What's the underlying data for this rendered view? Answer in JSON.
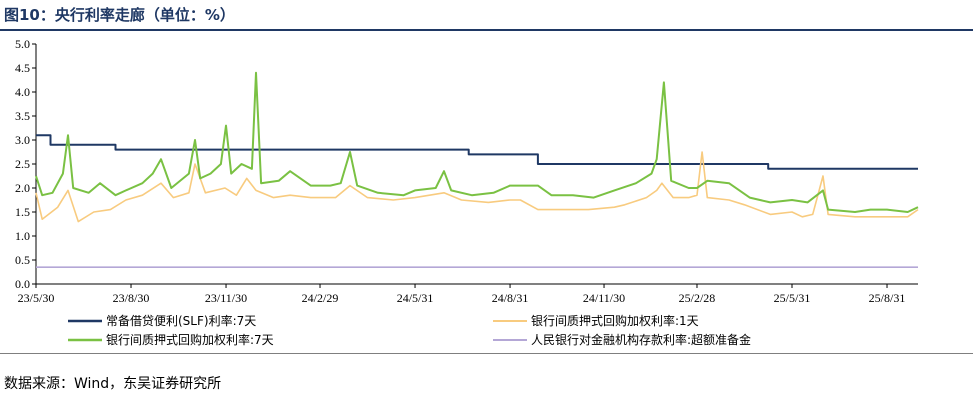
{
  "figure": {
    "title": "图10：央行利率走廊（单位：%）",
    "source": "数据来源：Wind，东吴证券研究所"
  },
  "chart_data": {
    "type": "line",
    "title": "图10：央行利率走廊（单位：%）",
    "xlabel": "",
    "ylabel": "",
    "ylim": [
      0,
      5
    ],
    "yticks": [
      "0.0",
      "0.5",
      "1.0",
      "1.5",
      "2.0",
      "2.5",
      "3.0",
      "3.5",
      "4.0",
      "4.5",
      "5.0"
    ],
    "x_tick_labels": [
      "23/5/30",
      "23/8/30",
      "23/11/30",
      "24/2/29",
      "24/5/31",
      "24/8/31",
      "24/11/30",
      "25/2/28",
      "25/5/31",
      "25/8/31"
    ],
    "xlim": [
      "2023-05-30",
      "2025-09-30"
    ],
    "grid": false,
    "legend_position": "bottom",
    "series": [
      {
        "name": "常备借贷便利(SLF)利率:7天",
        "color": "#1f3864",
        "style": "step",
        "points": [
          [
            "2023-05-30",
            3.1
          ],
          [
            "2023-06-13",
            3.1
          ],
          [
            "2023-06-13",
            2.9
          ],
          [
            "2023-08-15",
            2.9
          ],
          [
            "2023-08-15",
            2.8
          ],
          [
            "2024-07-22",
            2.8
          ],
          [
            "2024-07-22",
            2.7
          ],
          [
            "2024-09-27",
            2.7
          ],
          [
            "2024-09-27",
            2.5
          ],
          [
            "2025-05-08",
            2.5
          ],
          [
            "2025-05-08",
            2.4
          ],
          [
            "2025-09-30",
            2.4
          ]
        ]
      },
      {
        "name": "银行间质押式回购加权利率:1天",
        "color": "#f8cb7f",
        "style": "line",
        "points": [
          [
            "2023-05-30",
            1.9
          ],
          [
            "2023-06-05",
            1.35
          ],
          [
            "2023-06-20",
            1.6
          ],
          [
            "2023-06-30",
            1.95
          ],
          [
            "2023-07-10",
            1.3
          ],
          [
            "2023-07-25",
            1.5
          ],
          [
            "2023-08-10",
            1.55
          ],
          [
            "2023-08-25",
            1.75
          ],
          [
            "2023-09-10",
            1.85
          ],
          [
            "2023-09-28",
            2.1
          ],
          [
            "2023-10-10",
            1.8
          ],
          [
            "2023-10-25",
            1.9
          ],
          [
            "2023-10-31",
            2.5
          ],
          [
            "2023-11-10",
            1.9
          ],
          [
            "2023-11-29",
            2.0
          ],
          [
            "2023-12-10",
            1.85
          ],
          [
            "2023-12-20",
            2.2
          ],
          [
            "2023-12-29",
            1.95
          ],
          [
            "2024-01-15",
            1.8
          ],
          [
            "2024-01-31",
            1.85
          ],
          [
            "2024-02-20",
            1.8
          ],
          [
            "2024-03-15",
            1.8
          ],
          [
            "2024-03-29",
            2.05
          ],
          [
            "2024-04-15",
            1.8
          ],
          [
            "2024-05-10",
            1.75
          ],
          [
            "2024-05-31",
            1.8
          ],
          [
            "2024-06-28",
            1.9
          ],
          [
            "2024-07-15",
            1.75
          ],
          [
            "2024-08-10",
            1.7
          ],
          [
            "2024-08-31",
            1.75
          ],
          [
            "2024-09-10",
            1.75
          ],
          [
            "2024-09-27",
            1.55
          ],
          [
            "2024-10-15",
            1.55
          ],
          [
            "2024-11-15",
            1.55
          ],
          [
            "2024-12-10",
            1.6
          ],
          [
            "2024-12-20",
            1.65
          ],
          [
            "2025-01-10",
            1.8
          ],
          [
            "2025-01-20",
            1.95
          ],
          [
            "2025-01-25",
            2.1
          ],
          [
            "2025-02-05",
            1.8
          ],
          [
            "2025-02-20",
            1.8
          ],
          [
            "2025-02-28",
            1.85
          ],
          [
            "2025-03-05",
            2.75
          ],
          [
            "2025-03-10",
            1.8
          ],
          [
            "2025-03-31",
            1.75
          ],
          [
            "2025-04-15",
            1.65
          ],
          [
            "2025-05-10",
            1.45
          ],
          [
            "2025-05-31",
            1.5
          ],
          [
            "2025-06-10",
            1.4
          ],
          [
            "2025-06-20",
            1.45
          ],
          [
            "2025-06-30",
            2.25
          ],
          [
            "2025-07-05",
            1.45
          ],
          [
            "2025-07-31",
            1.4
          ],
          [
            "2025-08-31",
            1.4
          ],
          [
            "2025-09-20",
            1.4
          ],
          [
            "2025-09-30",
            1.55
          ]
        ]
      },
      {
        "name": "银行间质押式回购加权利率:7天",
        "color": "#7ac143",
        "style": "line",
        "points": [
          [
            "2023-05-30",
            2.25
          ],
          [
            "2023-06-05",
            1.85
          ],
          [
            "2023-06-15",
            1.9
          ],
          [
            "2023-06-25",
            2.3
          ],
          [
            "2023-06-30",
            3.1
          ],
          [
            "2023-07-05",
            2.0
          ],
          [
            "2023-07-20",
            1.9
          ],
          [
            "2023-07-31",
            2.1
          ],
          [
            "2023-08-15",
            1.85
          ],
          [
            "2023-08-25",
            1.95
          ],
          [
            "2023-09-10",
            2.1
          ],
          [
            "2023-09-20",
            2.3
          ],
          [
            "2023-09-28",
            2.6
          ],
          [
            "2023-10-08",
            2.0
          ],
          [
            "2023-10-25",
            2.3
          ],
          [
            "2023-10-31",
            3.0
          ],
          [
            "2023-11-05",
            2.2
          ],
          [
            "2023-11-15",
            2.3
          ],
          [
            "2023-11-25",
            2.5
          ],
          [
            "2023-11-30",
            3.3
          ],
          [
            "2023-12-05",
            2.3
          ],
          [
            "2023-12-15",
            2.5
          ],
          [
            "2023-12-25",
            2.4
          ],
          [
            "2023-12-29",
            4.4
          ],
          [
            "2024-01-03",
            2.1
          ],
          [
            "2024-01-20",
            2.15
          ],
          [
            "2024-01-31",
            2.35
          ],
          [
            "2024-02-20",
            2.05
          ],
          [
            "2024-03-10",
            2.05
          ],
          [
            "2024-03-20",
            2.1
          ],
          [
            "2024-03-29",
            2.75
          ],
          [
            "2024-04-05",
            2.05
          ],
          [
            "2024-04-25",
            1.9
          ],
          [
            "2024-05-20",
            1.85
          ],
          [
            "2024-05-31",
            1.95
          ],
          [
            "2024-06-20",
            2.0
          ],
          [
            "2024-06-28",
            2.35
          ],
          [
            "2024-07-05",
            1.95
          ],
          [
            "2024-07-25",
            1.85
          ],
          [
            "2024-08-15",
            1.9
          ],
          [
            "2024-08-31",
            2.05
          ],
          [
            "2024-09-15",
            2.05
          ],
          [
            "2024-09-27",
            2.05
          ],
          [
            "2024-10-10",
            1.85
          ],
          [
            "2024-10-31",
            1.85
          ],
          [
            "2024-11-20",
            1.8
          ],
          [
            "2024-12-10",
            1.95
          ],
          [
            "2024-12-31",
            2.1
          ],
          [
            "2025-01-15",
            2.3
          ],
          [
            "2025-01-20",
            2.6
          ],
          [
            "2025-01-27",
            4.2
          ],
          [
            "2025-02-03",
            2.15
          ],
          [
            "2025-02-20",
            2.0
          ],
          [
            "2025-02-28",
            2.0
          ],
          [
            "2025-03-10",
            2.15
          ],
          [
            "2025-03-31",
            2.1
          ],
          [
            "2025-04-20",
            1.8
          ],
          [
            "2025-05-10",
            1.7
          ],
          [
            "2025-05-31",
            1.75
          ],
          [
            "2025-06-15",
            1.7
          ],
          [
            "2025-06-30",
            1.95
          ],
          [
            "2025-07-05",
            1.55
          ],
          [
            "2025-07-31",
            1.5
          ],
          [
            "2025-08-15",
            1.55
          ],
          [
            "2025-08-31",
            1.55
          ],
          [
            "2025-09-20",
            1.5
          ],
          [
            "2025-09-30",
            1.6
          ]
        ]
      },
      {
        "name": "人民银行对金融机构存款利率:超额准备金",
        "color": "#b4a7d6",
        "style": "line",
        "points": [
          [
            "2023-05-30",
            0.35
          ],
          [
            "2025-09-30",
            0.35
          ]
        ]
      }
    ]
  }
}
